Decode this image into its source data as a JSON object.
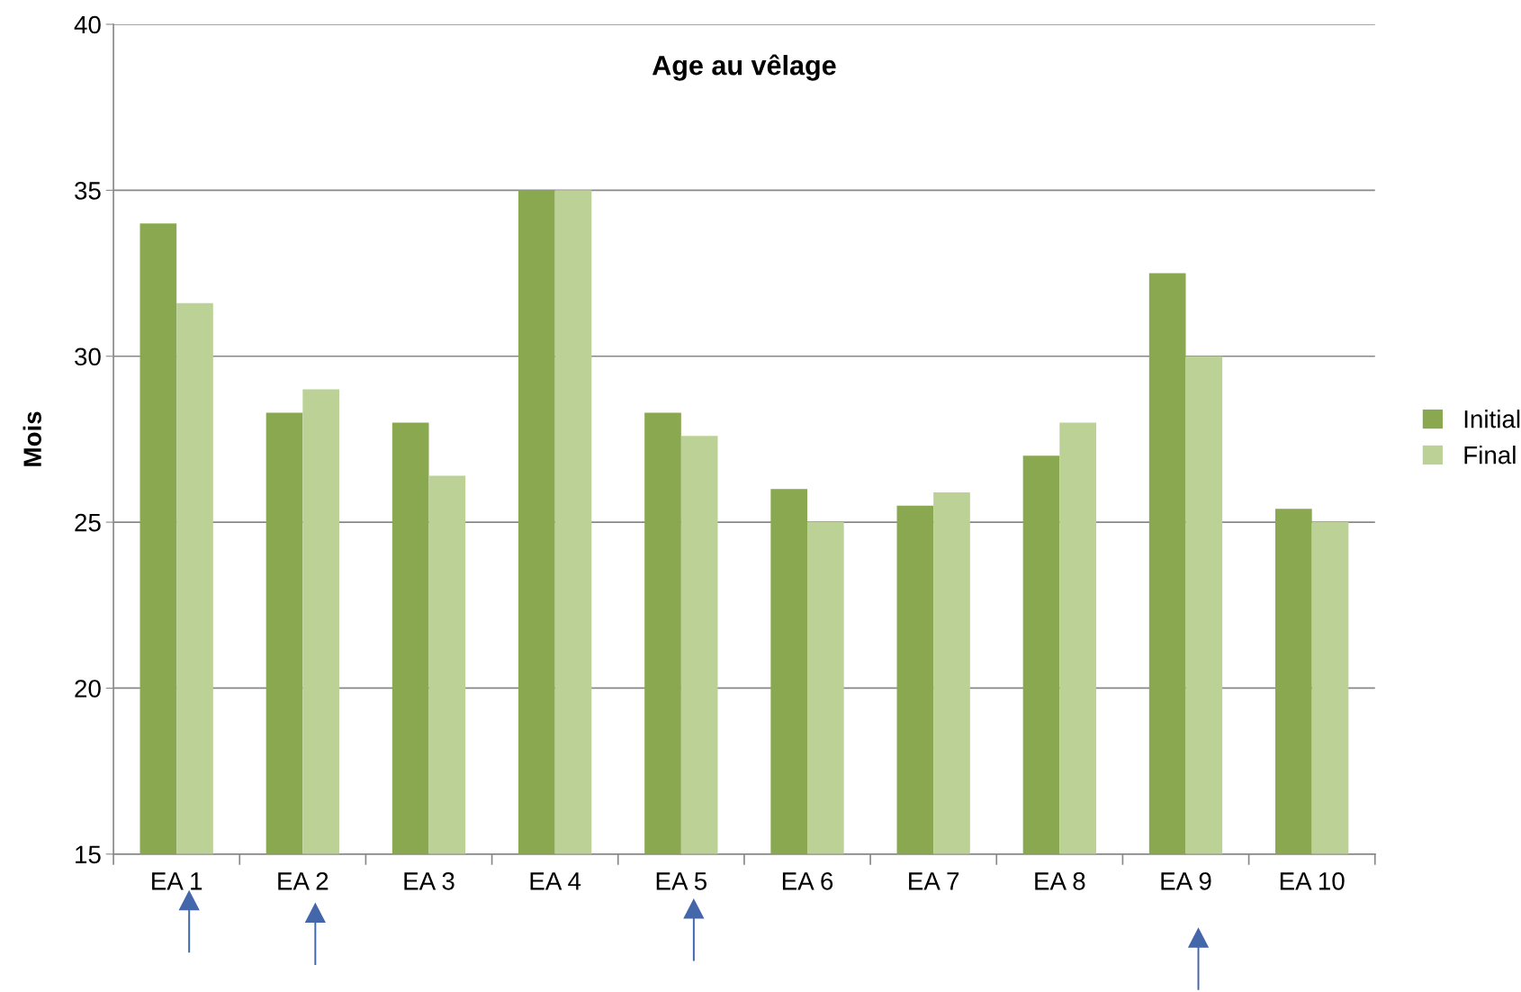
{
  "chart_data": {
    "type": "bar",
    "title": "Age au vêlage",
    "ylabel": "Mois",
    "categories": [
      "EA 1",
      "EA 2",
      "EA 3",
      "EA 4",
      "EA 5",
      "EA 6",
      "EA 7",
      "EA 8",
      "EA 9",
      "EA 10"
    ],
    "series": [
      {
        "name": "Initial",
        "color": "#8aa84f",
        "values": [
          34.0,
          28.3,
          28.0,
          35.0,
          28.3,
          26.0,
          25.5,
          27.0,
          32.5,
          25.4
        ]
      },
      {
        "name": "Final",
        "color": "#bbd196",
        "values": [
          31.6,
          29.0,
          26.4,
          35.0,
          27.6,
          25.0,
          25.9,
          28.0,
          30.0,
          25.0
        ]
      }
    ],
    "ylim": [
      15,
      40
    ],
    "yticks": [
      15,
      20,
      25,
      30,
      35,
      40
    ],
    "grid": "y",
    "legend": "right"
  }
}
